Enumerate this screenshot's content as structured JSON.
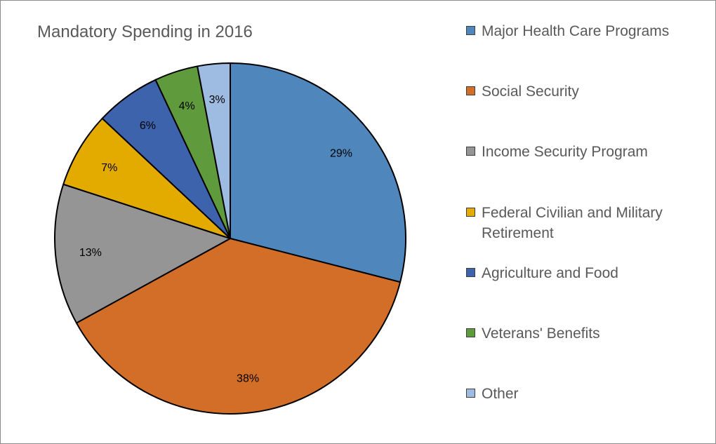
{
  "chart_data": {
    "type": "pie",
    "title": "Mandatory Spending in 2016",
    "legend_position": "right",
    "start_angle": "12 o'clock",
    "direction": "clockwise",
    "series": [
      {
        "name": "Mandatory Spending in 2016",
        "slices": [
          {
            "label": "Major Health Care Programs",
            "value": 29,
            "display": "29%",
            "color": "#4f86bc"
          },
          {
            "label": "Social Security",
            "value": 38,
            "display": "38%",
            "color": "#d36e29"
          },
          {
            "label": "Income Security Program",
            "value": 13,
            "display": "13%",
            "color": "#959595"
          },
          {
            "label": "Federal Civilian and Military Retirement",
            "value": 7,
            "display": "7%",
            "color": "#e3aa00"
          },
          {
            "label": "Agriculture and Food",
            "value": 6,
            "display": "6%",
            "color": "#3d63ad"
          },
          {
            "label": "Veterans' Benefits",
            "value": 4,
            "display": "4%",
            "color": "#5f9a3c"
          },
          {
            "label": "Other",
            "value": 3,
            "display": "3%",
            "color": "#9ebbe2"
          }
        ]
      }
    ]
  }
}
